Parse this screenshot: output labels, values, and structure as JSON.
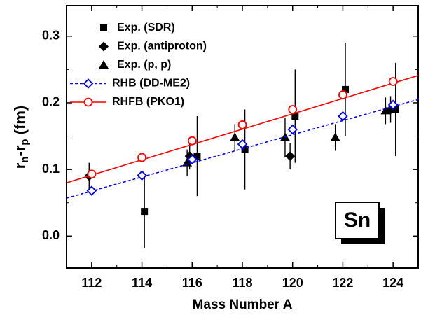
{
  "chart_data": {
    "type": "scatter",
    "xlabel": "Mass Number A",
    "ylabel_parts": [
      "r",
      "n",
      "-r",
      "p",
      " (fm)"
    ],
    "annotation": "Sn",
    "xlim": [
      111,
      125
    ],
    "ylim": [
      -0.048,
      0.346
    ],
    "xticks": [
      112,
      114,
      116,
      118,
      120,
      122,
      124
    ],
    "yticks": [
      {
        "value": 0,
        "label": "0.0"
      },
      0.1,
      0.2,
      0.3
    ],
    "series": [
      {
        "name": "Exp. (SDR)",
        "marker": "square",
        "color": "#000000",
        "x": [
          114.1,
          116.2,
          118.1,
          120.1,
          122.1,
          124.1
        ],
        "values": [
          0.037,
          0.12,
          0.13,
          0.18,
          0.22,
          0.19
        ],
        "errors": [
          0.055,
          0.06,
          0.06,
          0.07,
          0.07,
          0.07
        ]
      },
      {
        "name": "Exp. (antiproton)",
        "marker": "diamond",
        "color": "#000000",
        "x": [
          111.9,
          115.9,
          119.9,
          123.9
        ],
        "values": [
          0.09,
          0.12,
          0.12,
          0.19
        ],
        "errors": [
          0.02,
          0.02,
          0.02,
          0.02
        ]
      },
      {
        "name": "Exp. (p, p)",
        "marker": "triangle",
        "color": "#000000",
        "x": [
          115.8,
          117.7,
          119.7,
          121.7,
          123.7
        ],
        "values": [
          0.11,
          0.148,
          0.148,
          0.148,
          0.188
        ],
        "errors": [
          0.02,
          0.02,
          0.03,
          0.02,
          0.02
        ]
      },
      {
        "name": "RHB (DD-ME2)",
        "marker": "open-diamond",
        "color": "#0000ff",
        "dash": true,
        "x": [
          112,
          114,
          116,
          118,
          120,
          122,
          124
        ],
        "values": [
          0.068,
          0.091,
          0.115,
          0.138,
          0.16,
          0.18,
          0.197
        ],
        "fit": {
          "x": [
            111,
            125
          ],
          "values": [
            0.057,
            0.205
          ]
        }
      },
      {
        "name": "RHFB (PKO1)",
        "marker": "open-circle",
        "color": "#ff0000",
        "dash": false,
        "x": [
          112,
          114,
          116,
          118,
          120,
          122,
          124
        ],
        "values": [
          0.093,
          0.118,
          0.143,
          0.167,
          0.19,
          0.212,
          0.232
        ],
        "fit": {
          "x": [
            111,
            125
          ],
          "values": [
            0.08,
            0.241
          ]
        }
      }
    ]
  }
}
